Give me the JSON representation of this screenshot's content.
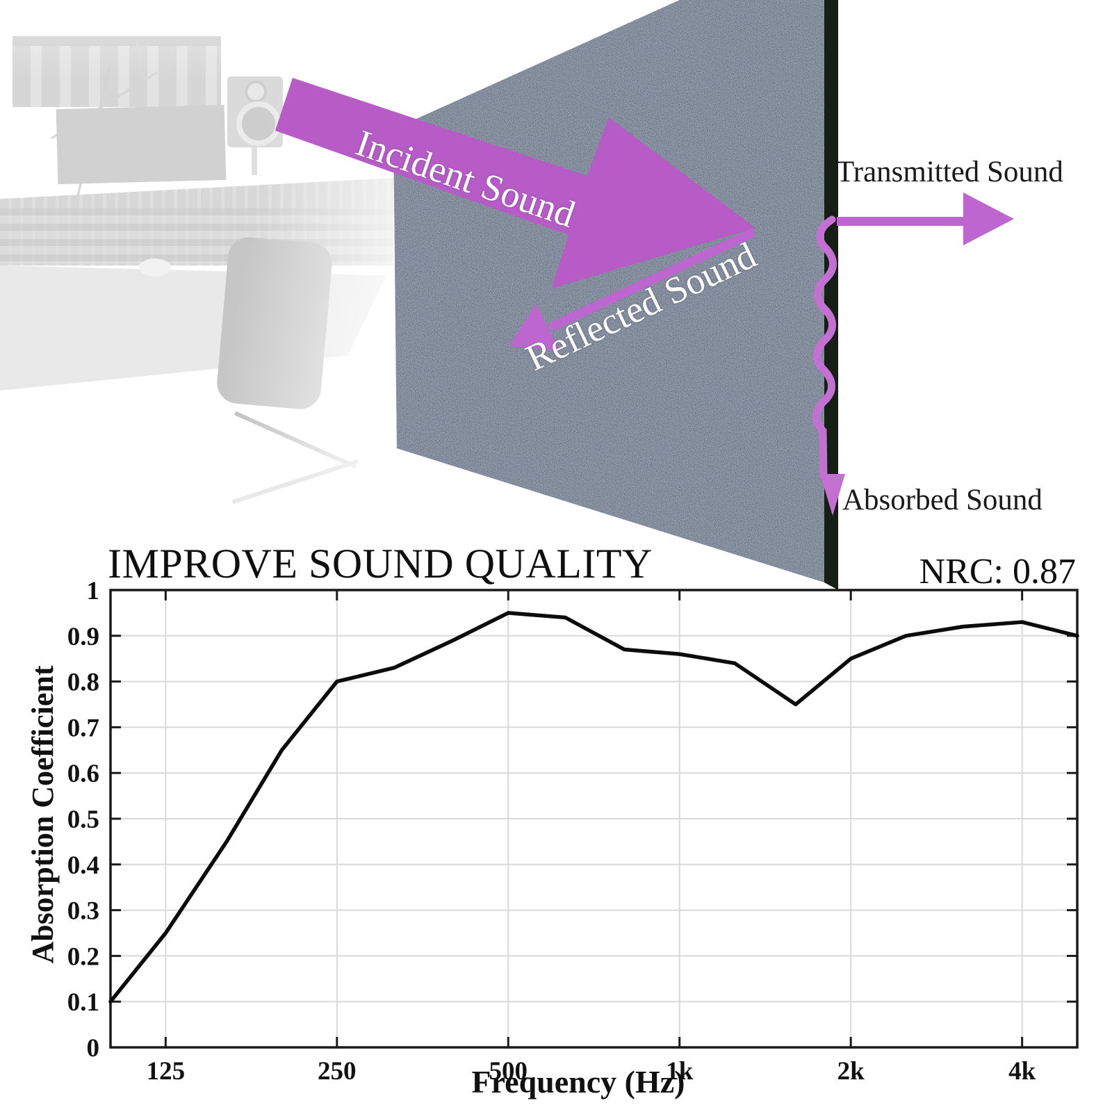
{
  "page": {
    "background": "#ffffff"
  },
  "diagram": {
    "incident_label": "Incident Sound",
    "reflected_label": "Reflected Sound",
    "transmitted_label": "Transmitted Sound",
    "absorbed_label": "Absorbed Sound",
    "colors": {
      "arrow_purple": "#b75cc7",
      "thin_arrow_purple": "#bd66cf",
      "squiggle_purple": "#c470d3",
      "panel_base": "#46546a",
      "panel_edge_strip": "#151f16",
      "label_white": "#ffffff",
      "label_black": "#1a1a1a"
    }
  },
  "chart_data": {
    "type": "line",
    "title": "IMPROVE SOUND QUALITY",
    "annotation": "NRC: 0.87",
    "xlabel": "Frequency (Hz)",
    "ylabel": "Absorption Coefficient",
    "xscale": "log",
    "xlim": [
      100,
      5000
    ],
    "ylim": [
      0,
      1
    ],
    "grid": true,
    "legend": false,
    "line_color": "#0c0c0c",
    "grid_color": "#d9d9d9",
    "x_ticks": [
      {
        "v": 125,
        "label": "125"
      },
      {
        "v": 250,
        "label": "250"
      },
      {
        "v": 500,
        "label": "500"
      },
      {
        "v": 1000,
        "label": "1k"
      },
      {
        "v": 2000,
        "label": "2k"
      },
      {
        "v": 4000,
        "label": "4k"
      }
    ],
    "y_ticks": [
      {
        "v": 0,
        "label": "0"
      },
      {
        "v": 0.1,
        "label": "0.1"
      },
      {
        "v": 0.2,
        "label": "0.2"
      },
      {
        "v": 0.3,
        "label": "0.3"
      },
      {
        "v": 0.4,
        "label": "0.4"
      },
      {
        "v": 0.5,
        "label": "0.5"
      },
      {
        "v": 0.6,
        "label": "0.6"
      },
      {
        "v": 0.7,
        "label": "0.7"
      },
      {
        "v": 0.8,
        "label": "0.8"
      },
      {
        "v": 0.9,
        "label": "0.9"
      },
      {
        "v": 1,
        "label": "1"
      }
    ],
    "series": [
      {
        "name": "Absorption Coefficient",
        "x": [
          100,
          125,
          160,
          200,
          250,
          315,
          400,
          500,
          630,
          800,
          1000,
          1250,
          1600,
          2000,
          2500,
          3150,
          4000,
          5000
        ],
        "y": [
          0.1,
          0.25,
          0.45,
          0.65,
          0.8,
          0.83,
          0.89,
          0.95,
          0.94,
          0.87,
          0.86,
          0.84,
          0.75,
          0.85,
          0.9,
          0.92,
          0.93,
          0.9
        ]
      }
    ]
  }
}
